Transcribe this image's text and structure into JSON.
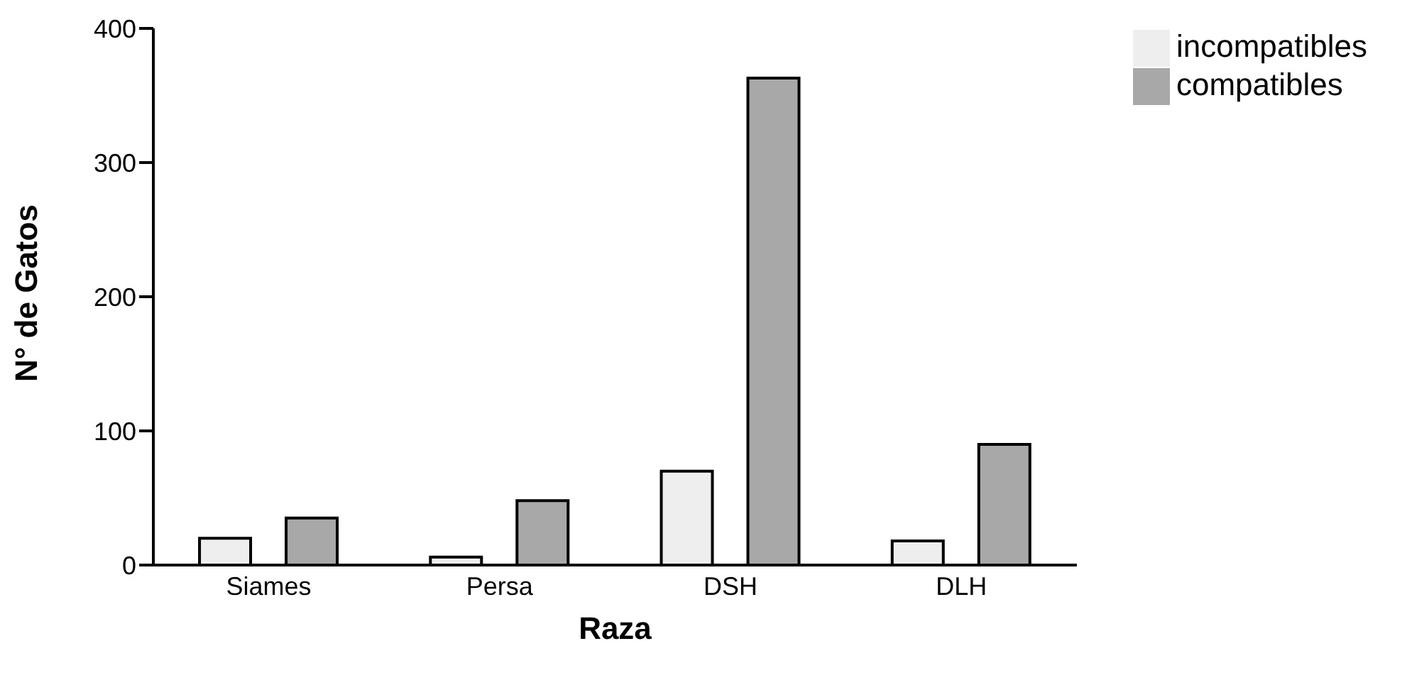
{
  "chart_data": {
    "type": "bar",
    "xlabel": "Raza",
    "ylabel": "N° de Gatos",
    "categories": [
      "Siames",
      "Persa",
      "DSH",
      "DLH"
    ],
    "series": [
      {
        "name": "incompatibles",
        "color": "#eeeeee",
        "values": [
          20,
          6,
          70,
          18
        ]
      },
      {
        "name": "compatibles",
        "color": "#a8a8a8",
        "values": [
          35,
          48,
          363,
          90
        ]
      }
    ],
    "ylim": [
      0,
      400
    ],
    "yticks": [
      0,
      100,
      200,
      300,
      400
    ],
    "grid": false,
    "legend": "top right"
  }
}
